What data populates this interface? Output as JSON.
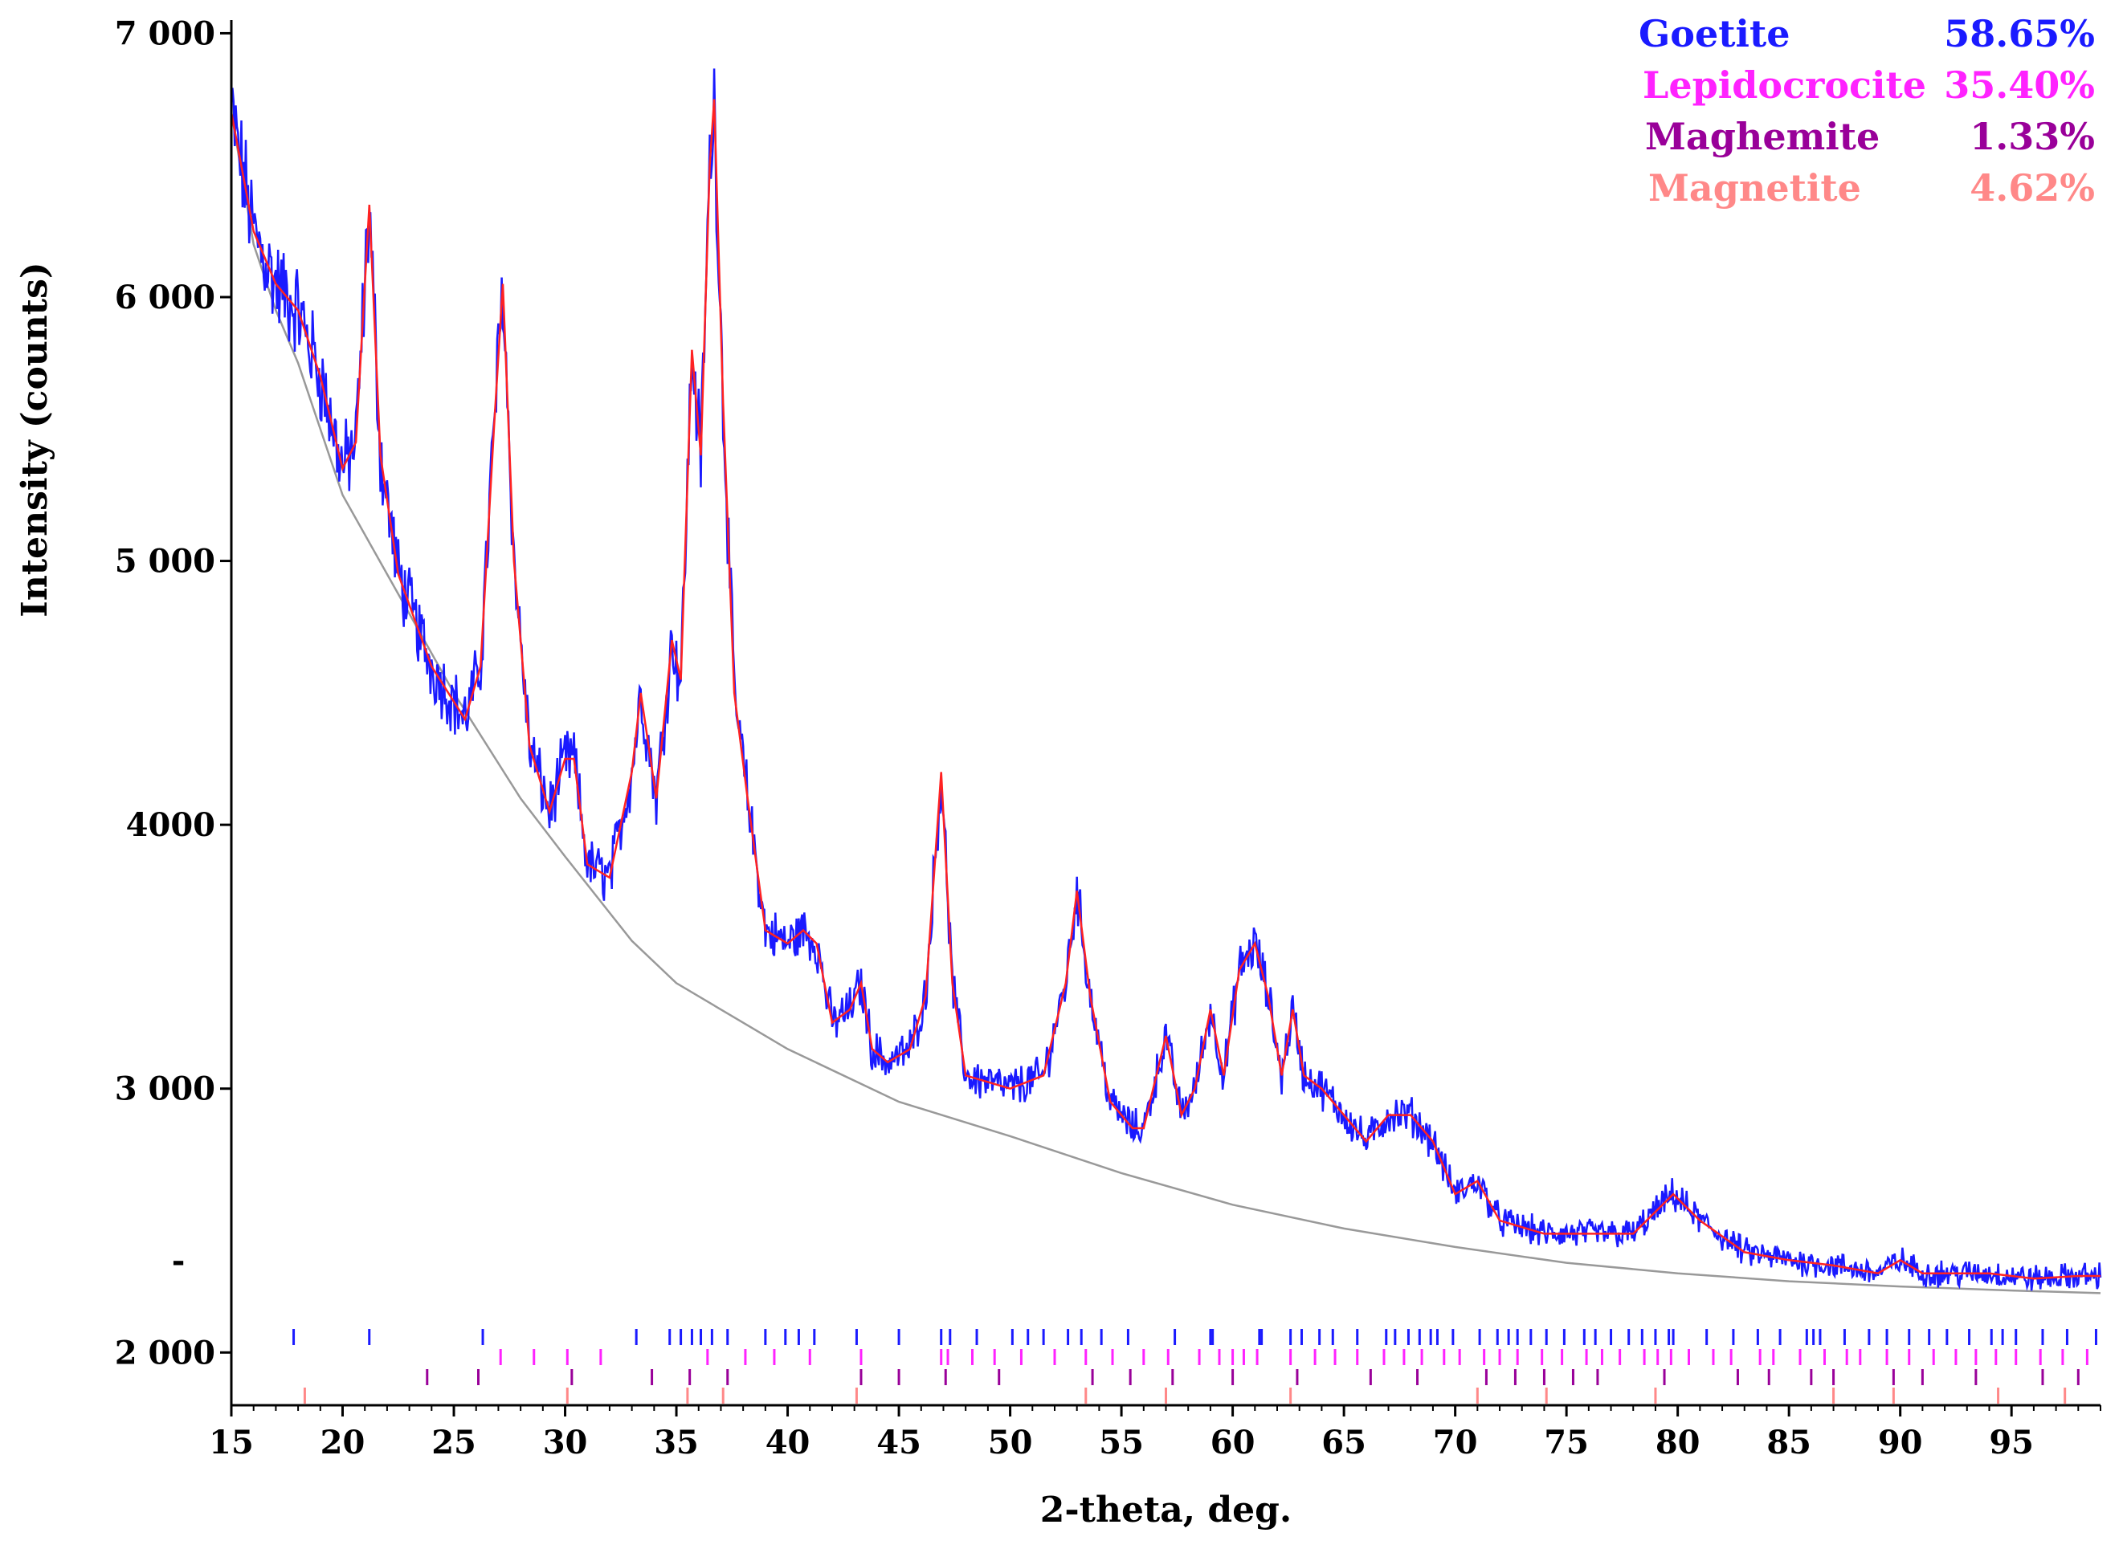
{
  "chart_data": {
    "type": "line",
    "xlabel": "2-theta, deg.",
    "ylabel": "Intensity (counts)",
    "xlim": [
      15,
      99
    ],
    "ylim": [
      1800,
      7050
    ],
    "x_ticks": [
      15,
      20,
      25,
      30,
      35,
      40,
      45,
      50,
      55,
      60,
      65,
      70,
      75,
      80,
      85,
      90,
      95
    ],
    "y_ticks": [
      {
        "value": 2000,
        "label": "2 000"
      },
      {
        "value": 2350,
        "label": "-"
      },
      {
        "value": 3000,
        "label": "3 000"
      },
      {
        "value": 4000,
        "label": "4000"
      },
      {
        "value": 5000,
        "label": "5 000"
      },
      {
        "value": 6000,
        "label": "6 000"
      },
      {
        "value": 7000,
        "label": "7 000"
      }
    ],
    "legend_position": "top-right",
    "legend": [
      {
        "phase": "Goetite",
        "percent": "58.65%",
        "color": "#1a1aff"
      },
      {
        "phase": "Lepidocrocite",
        "percent": "35.40%",
        "color": "#ff22ff"
      },
      {
        "phase": "Maghemite",
        "percent": "1.33%",
        "color": "#990099"
      },
      {
        "phase": "Magnetite",
        "percent": "4.62%",
        "color": "#ff8888"
      }
    ],
    "background": {
      "color": "#999999",
      "points": [
        [
          15,
          6700
        ],
        [
          16,
          6200
        ],
        [
          17,
          5950
        ],
        [
          18,
          5750
        ],
        [
          20,
          5250
        ],
        [
          22,
          4950
        ],
        [
          25,
          4500
        ],
        [
          28,
          4100
        ],
        [
          30,
          3880
        ],
        [
          33,
          3560
        ],
        [
          35,
          3400
        ],
        [
          40,
          3150
        ],
        [
          45,
          2950
        ],
        [
          50,
          2820
        ],
        [
          55,
          2680
        ],
        [
          60,
          2560
        ],
        [
          65,
          2470
        ],
        [
          70,
          2400
        ],
        [
          75,
          2340
        ],
        [
          80,
          2300
        ],
        [
          85,
          2270
        ],
        [
          90,
          2250
        ],
        [
          95,
          2235
        ],
        [
          99,
          2225
        ]
      ]
    },
    "calculated": {
      "color": "#ff2222",
      "points": [
        [
          15,
          6700
        ],
        [
          16,
          6250
        ],
        [
          17,
          6050
        ],
        [
          18,
          5950
        ],
        [
          19,
          5700
        ],
        [
          20,
          5350
        ],
        [
          20.6,
          5450
        ],
        [
          21.2,
          6350
        ],
        [
          21.7,
          5400
        ],
        [
          22.5,
          4950
        ],
        [
          24,
          4600
        ],
        [
          25.5,
          4400
        ],
        [
          26.2,
          4600
        ],
        [
          26.8,
          5500
        ],
        [
          27.2,
          6050
        ],
        [
          27.7,
          5000
        ],
        [
          28.4,
          4300
        ],
        [
          29.3,
          4050
        ],
        [
          30,
          4250
        ],
        [
          30.4,
          4250
        ],
        [
          31,
          3850
        ],
        [
          32,
          3800
        ],
        [
          33,
          4200
        ],
        [
          33.4,
          4500
        ],
        [
          34.1,
          4100
        ],
        [
          34.8,
          4700
        ],
        [
          35.2,
          4550
        ],
        [
          35.7,
          5800
        ],
        [
          36.1,
          5400
        ],
        [
          36.5,
          6500
        ],
        [
          36.7,
          6750
        ],
        [
          37.1,
          5600
        ],
        [
          37.6,
          4500
        ],
        [
          38.2,
          4100
        ],
        [
          39,
          3600
        ],
        [
          40,
          3550
        ],
        [
          40.7,
          3600
        ],
        [
          41.3,
          3550
        ],
        [
          42,
          3250
        ],
        [
          42.8,
          3300
        ],
        [
          43.3,
          3400
        ],
        [
          43.8,
          3150
        ],
        [
          44.5,
          3100
        ],
        [
          45.5,
          3150
        ],
        [
          46.2,
          3350
        ],
        [
          46.9,
          4200
        ],
        [
          47.4,
          3400
        ],
        [
          48,
          3050
        ],
        [
          50,
          3000
        ],
        [
          51.5,
          3050
        ],
        [
          52.5,
          3400
        ],
        [
          53,
          3750
        ],
        [
          53.6,
          3350
        ],
        [
          54.5,
          2950
        ],
        [
          55.5,
          2850
        ],
        [
          56,
          2850
        ],
        [
          57,
          3200
        ],
        [
          57.7,
          2900
        ],
        [
          58.3,
          3000
        ],
        [
          59,
          3300
        ],
        [
          59.6,
          3050
        ],
        [
          60.3,
          3450
        ],
        [
          61,
          3550
        ],
        [
          61.6,
          3350
        ],
        [
          62.2,
          3050
        ],
        [
          62.7,
          3300
        ],
        [
          63.2,
          3050
        ],
        [
          64,
          3000
        ],
        [
          65,
          2900
        ],
        [
          66,
          2800
        ],
        [
          67,
          2900
        ],
        [
          68,
          2900
        ],
        [
          69,
          2800
        ],
        [
          70,
          2600
        ],
        [
          71,
          2650
        ],
        [
          72,
          2500
        ],
        [
          74,
          2450
        ],
        [
          76,
          2450
        ],
        [
          78,
          2450
        ],
        [
          79.8,
          2600
        ],
        [
          81,
          2500
        ],
        [
          83,
          2380
        ],
        [
          85,
          2350
        ],
        [
          87,
          2330
        ],
        [
          89,
          2300
        ],
        [
          90,
          2350
        ],
        [
          91,
          2300
        ],
        [
          94,
          2300
        ],
        [
          96,
          2280
        ],
        [
          98,
          2290
        ],
        [
          99,
          2290
        ]
      ]
    },
    "observed": {
      "color": "#1a1aff",
      "x_start": 15,
      "x_end": 99,
      "x_step": 0.05,
      "description_peaks": [
        21.2,
        27.1,
        30.0,
        33.3,
        35.7,
        36.7,
        46.9,
        53.0,
        59.1,
        61.0,
        62.6,
        79.7
      ]
    },
    "reflection_ticks": [
      {
        "phase": "Goetite",
        "color": "#1a1aff",
        "positions": [
          17.8,
          21.2,
          26.3,
          33.2,
          34.7,
          35.2,
          35.7,
          36.1,
          36.6,
          37.3,
          39.0,
          39.9,
          40.5,
          41.2,
          43.1,
          45.0,
          46.9,
          47.3,
          48.5,
          50.1,
          50.8,
          51.5,
          52.6,
          53.2,
          54.1,
          55.3,
          57.4,
          59.0,
          59.1,
          61.2,
          61.3,
          62.6,
          63.1,
          63.9,
          64.5,
          65.6,
          66.9,
          67.3,
          67.9,
          68.4,
          68.9,
          69.2,
          69.9,
          71.1,
          71.9,
          72.4,
          72.8,
          73.4,
          74.1,
          74.9,
          75.8,
          76.3,
          77.0,
          77.8,
          78.4,
          79.0,
          79.6,
          79.8,
          81.3,
          82.5,
          83.6,
          84.6,
          85.8,
          86.1,
          86.4,
          87.5,
          88.6,
          89.4,
          90.4,
          91.3,
          92.1,
          93.1,
          94.1,
          94.6,
          95.2,
          96.4,
          97.5,
          98.8
        ]
      },
      {
        "phase": "Lepidocrocite",
        "color": "#ff22ff",
        "positions": [
          27.1,
          28.6,
          30.1,
          31.6,
          36.4,
          38.1,
          39.4,
          41.0,
          43.3,
          46.9,
          47.2,
          48.3,
          49.3,
          50.5,
          52.0,
          53.4,
          54.6,
          56.0,
          57.1,
          58.5,
          59.4,
          60.0,
          60.5,
          61.1,
          62.6,
          63.7,
          64.6,
          65.6,
          66.8,
          67.7,
          68.5,
          69.5,
          70.2,
          71.3,
          72.0,
          72.8,
          73.9,
          74.8,
          75.9,
          76.6,
          77.4,
          78.5,
          79.1,
          79.7,
          80.5,
          81.6,
          82.4,
          83.7,
          84.3,
          85.5,
          86.6,
          87.6,
          88.2,
          89.4,
          90.4,
          91.5,
          92.5,
          93.4,
          94.3,
          95.2,
          96.3,
          97.3,
          98.4
        ]
      },
      {
        "phase": "Maghemite",
        "color": "#990099",
        "positions": [
          23.8,
          26.1,
          30.3,
          33.9,
          35.6,
          37.3,
          43.3,
          45.0,
          47.1,
          49.5,
          53.7,
          55.4,
          57.3,
          60.0,
          62.9,
          66.2,
          68.3,
          71.4,
          72.7,
          74.0,
          75.3,
          76.4,
          79.4,
          82.7,
          84.1,
          86.0,
          87.0,
          89.7,
          91.0,
          93.4,
          96.4,
          98.0
        ]
      },
      {
        "phase": "Magnetite",
        "color": "#ff8888",
        "positions": [
          18.3,
          30.1,
          35.5,
          37.1,
          43.1,
          53.4,
          57.0,
          62.6,
          71.0,
          74.1,
          79.0,
          87.0,
          89.7,
          94.4,
          97.4
        ]
      }
    ]
  }
}
